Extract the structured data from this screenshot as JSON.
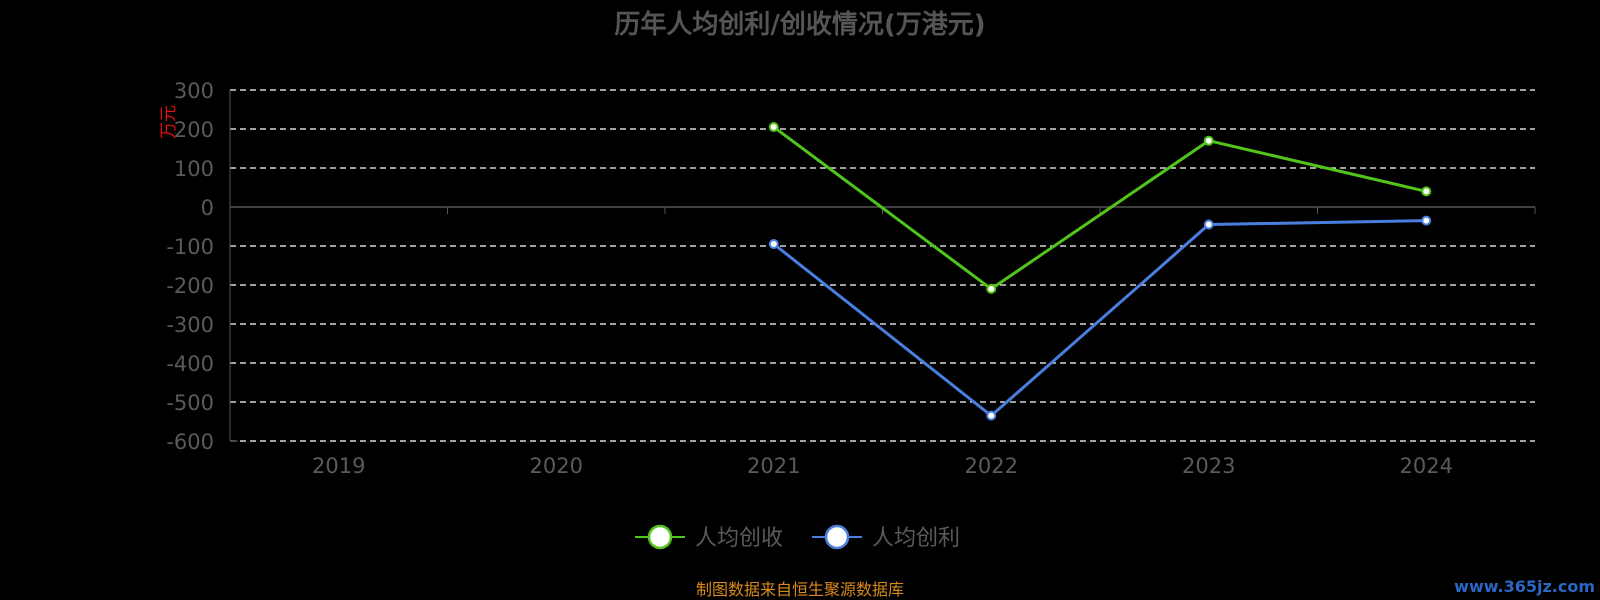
{
  "chart_data": {
    "type": "line",
    "title": "历年人均创利/创收情况(万港元)",
    "ylabel": "万元",
    "xlabel": "",
    "categories": [
      "2019",
      "2020",
      "2021",
      "2022",
      "2023",
      "2024"
    ],
    "y_ticks": [
      "300",
      "200",
      "100",
      "0",
      "-100",
      "-200",
      "-300",
      "-400",
      "-500",
      "-600"
    ],
    "ylim": [
      -600,
      300
    ],
    "grid": true,
    "legend_position": "bottom-center",
    "series": [
      {
        "name": "人均创收",
        "color": "#52c41a",
        "values": [
          null,
          null,
          205,
          -210,
          170,
          40
        ]
      },
      {
        "name": "人均创利",
        "color": "#4a7fe0",
        "values": [
          null,
          null,
          -95,
          -535,
          -45,
          -35
        ]
      }
    ]
  },
  "footer": {
    "source": "制图数据来自恒生聚源数据库",
    "watermark": "www.365jz.com"
  }
}
